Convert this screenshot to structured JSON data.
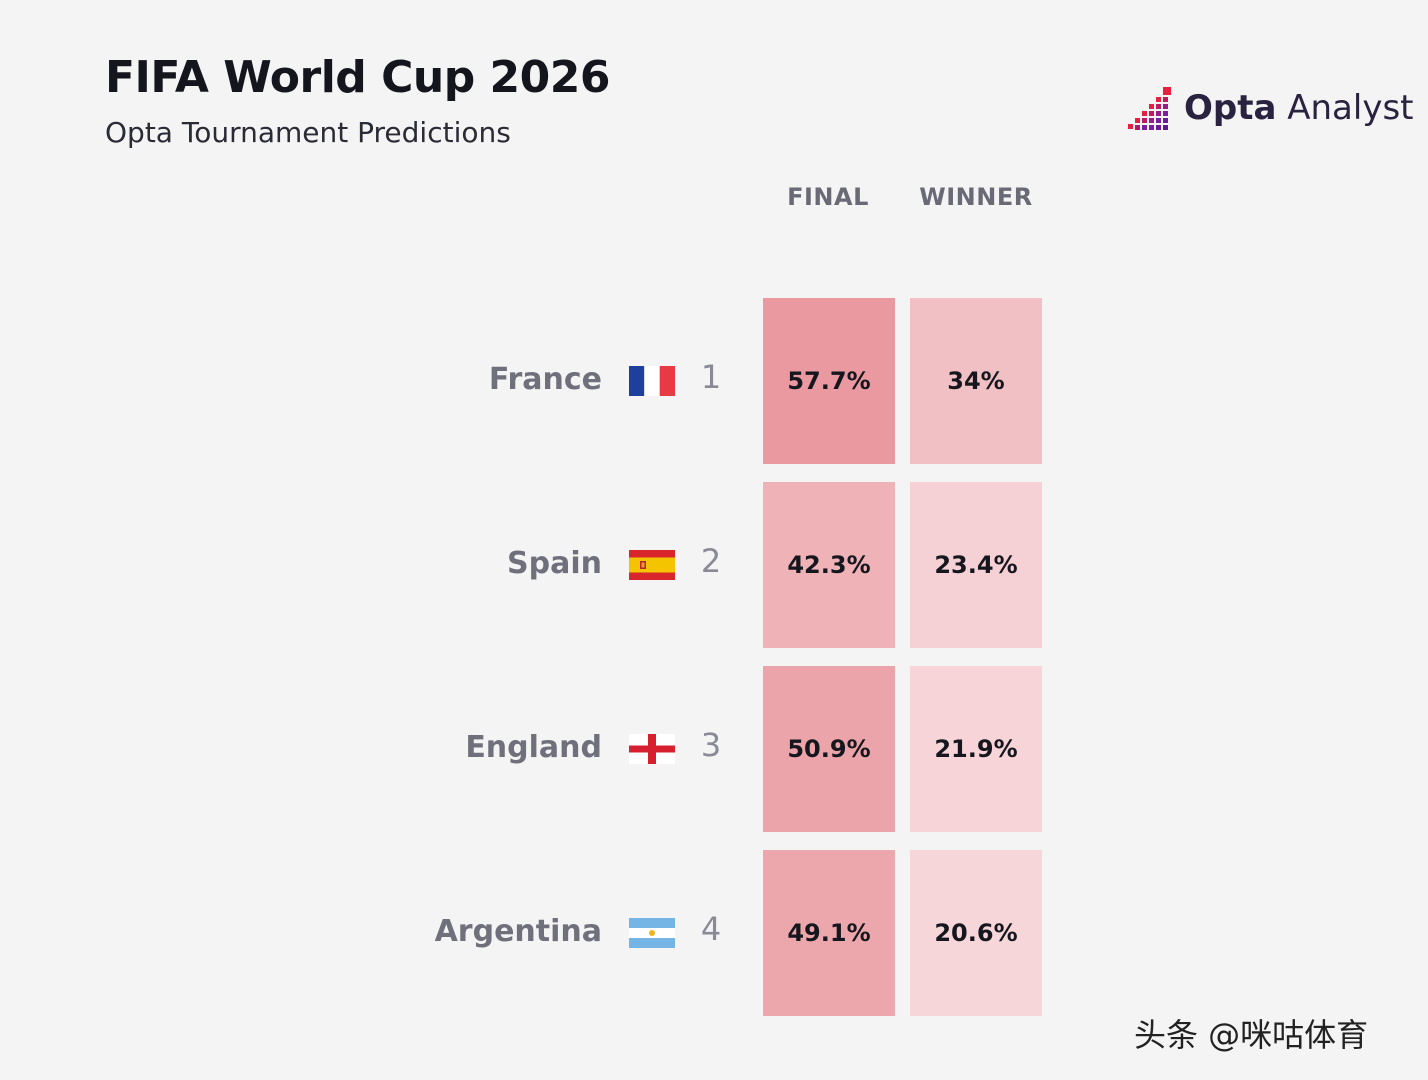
{
  "header": {
    "title": "FIFA World Cup 2026",
    "subtitle": "Opta Tournament Predictions",
    "logo_bold": "Opta",
    "logo_light": "Analyst"
  },
  "columns": [
    "FINAL",
    "WINNER"
  ],
  "chart_data": {
    "type": "heatmap",
    "title": "FIFA World Cup 2026",
    "subtitle": "Opta Tournament Predictions",
    "columns": [
      "FINAL",
      "WINNER"
    ],
    "rows": [
      {
        "rank": "1",
        "team": "France",
        "flag": "france-flag",
        "final_pct": 57.7,
        "winner_pct": 34.0,
        "final_label": "57.7%",
        "winner_label": "34%"
      },
      {
        "rank": "2",
        "team": "Spain",
        "flag": "spain-flag",
        "final_pct": 42.3,
        "winner_pct": 23.4,
        "final_label": "42.3%",
        "winner_label": "23.4%"
      },
      {
        "rank": "3",
        "team": "England",
        "flag": "england-flag",
        "final_pct": 50.9,
        "winner_pct": 21.9,
        "final_label": "50.9%",
        "winner_label": "21.9%"
      },
      {
        "rank": "4",
        "team": "Argentina",
        "flag": "argentina-flag",
        "final_pct": 49.1,
        "winner_pct": 20.6,
        "final_label": "49.1%",
        "winner_label": "20.6%"
      }
    ],
    "color_scale": {
      "low": "#f7dadd",
      "high": "#e8959b"
    }
  },
  "watermark": "头条 @咪咕体育"
}
